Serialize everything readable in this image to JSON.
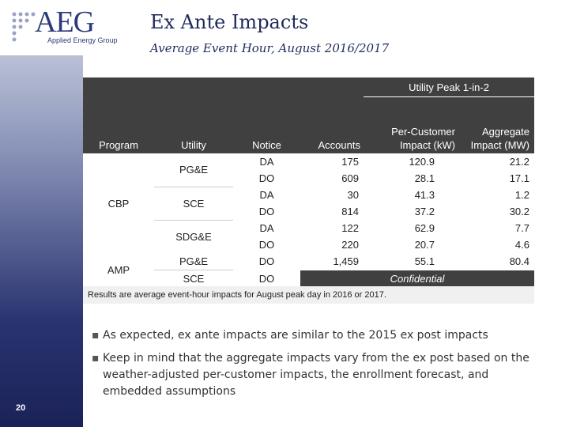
{
  "logo": {
    "name": "AEG",
    "tagline": "Applied Energy Group"
  },
  "header": {
    "title": "Ex Ante Impacts",
    "subtitle": "Average Event Hour, August 2016/2017"
  },
  "table": {
    "group_header": "Utility Peak 1-in-2",
    "columns": [
      "Program",
      "Utility",
      "Notice",
      "Accounts",
      "Per-Customer Impact (kW)",
      "Aggregate Impact (MW)"
    ],
    "programs": [
      {
        "name": "CBP",
        "utilities": [
          {
            "name": "PG&E",
            "rows": [
              {
                "notice": "DA",
                "accounts": "175",
                "per_customer": "120.9",
                "aggregate": "21.2"
              },
              {
                "notice": "DO",
                "accounts": "609",
                "per_customer": "28.1",
                "aggregate": "17.1"
              }
            ]
          },
          {
            "name": "SCE",
            "rows": [
              {
                "notice": "DA",
                "accounts": "30",
                "per_customer": "41.3",
                "aggregate": "1.2"
              },
              {
                "notice": "DO",
                "accounts": "814",
                "per_customer": "37.2",
                "aggregate": "30.2"
              }
            ]
          },
          {
            "name": "SDG&E",
            "rows": [
              {
                "notice": "DA",
                "accounts": "122",
                "per_customer": "62.9",
                "aggregate": "7.7"
              },
              {
                "notice": "DO",
                "accounts": "220",
                "per_customer": "20.7",
                "aggregate": "4.6"
              }
            ]
          }
        ]
      },
      {
        "name": "AMP",
        "utilities": [
          {
            "name": "PG&E",
            "rows": [
              {
                "notice": "DO",
                "accounts": "1,459",
                "per_customer": "55.1",
                "aggregate": "80.4"
              }
            ]
          },
          {
            "name": "SCE",
            "rows": [
              {
                "notice": "DO",
                "confidential": "Confidential"
              }
            ]
          }
        ]
      }
    ],
    "footnote": "Results are average event-hour impacts for August peak day in 2016 or 2017."
  },
  "bullets": [
    "As expected, ex ante impacts are similar to the 2015 ex post impacts",
    "Keep in mind that the aggregate impacts vary from the ex post based on the weather-adjusted per-customer impacts, the enrollment forecast, and embedded assumptions"
  ],
  "page_number": "20"
}
